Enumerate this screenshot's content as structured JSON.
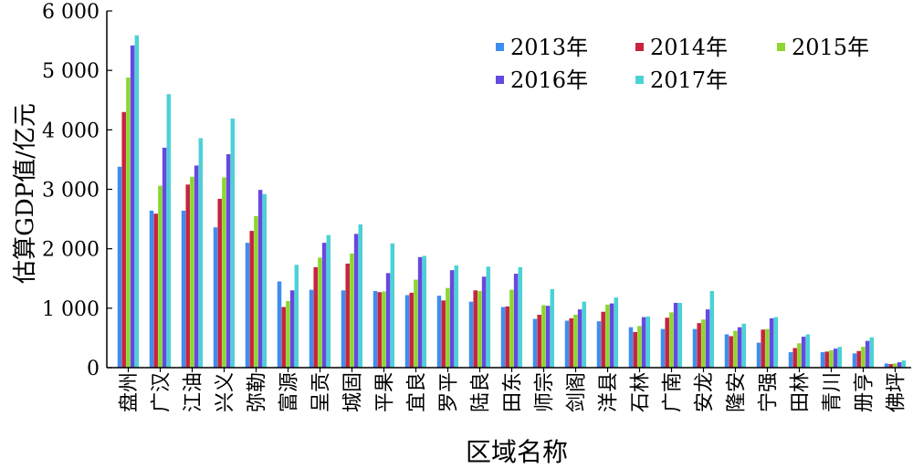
{
  "chart_data": {
    "type": "bar",
    "ylabel": "估算GDP值/亿元",
    "xlabel": "区域名称",
    "ylim": [
      0,
      6000
    ],
    "yticks": [
      0,
      1000,
      2000,
      3000,
      4000,
      5000,
      6000
    ],
    "ytick_labels": [
      "0",
      "1 000",
      "2 000",
      "3 000",
      "4 000",
      "5 000",
      "6 000"
    ],
    "grid": false,
    "legend_position": "top-right",
    "categories": [
      "盘州",
      "广汉",
      "江油",
      "兴义",
      "弥勒",
      "富源",
      "呈贡",
      "城固",
      "平果",
      "宜良",
      "罗平",
      "陆良",
      "田东",
      "师宗",
      "剑阁",
      "洋县",
      "石林",
      "广南",
      "安龙",
      "隆安",
      "宁强",
      "田林",
      "青川",
      "册亨",
      "佛坪"
    ],
    "series": [
      {
        "name": "2013年",
        "color": "#3d8ef0",
        "values": [
          3380,
          2640,
          2640,
          2360,
          2100,
          1450,
          1310,
          1300,
          1290,
          1220,
          1210,
          1110,
          1020,
          820,
          790,
          780,
          680,
          650,
          650,
          560,
          420,
          260,
          260,
          240,
          70
        ]
      },
      {
        "name": "2014年",
        "color": "#c8233f",
        "values": [
          4300,
          2590,
          3080,
          2840,
          2300,
          1020,
          1690,
          1750,
          1270,
          1260,
          1130,
          1300,
          1030,
          890,
          830,
          940,
          600,
          840,
          750,
          530,
          640,
          330,
          270,
          280,
          60
        ]
      },
      {
        "name": "2015年",
        "color": "#8ed62f",
        "values": [
          4880,
          3060,
          3210,
          3200,
          2550,
          1120,
          1850,
          1920,
          1280,
          1480,
          1340,
          1290,
          1310,
          1050,
          890,
          1060,
          700,
          930,
          810,
          620,
          650,
          410,
          290,
          350,
          70
        ]
      },
      {
        "name": "2016年",
        "color": "#6549e0",
        "values": [
          5420,
          3700,
          3400,
          3590,
          2990,
          1300,
          2100,
          2250,
          1590,
          1860,
          1640,
          1530,
          1580,
          1040,
          980,
          1080,
          850,
          1090,
          980,
          680,
          830,
          520,
          320,
          450,
          90
        ]
      },
      {
        "name": "2017年",
        "color": "#4cd2d6",
        "values": [
          5590,
          4600,
          3860,
          4190,
          2920,
          1730,
          2230,
          2410,
          2090,
          1880,
          1720,
          1700,
          1690,
          1320,
          1110,
          1180,
          860,
          1090,
          1290,
          740,
          850,
          560,
          350,
          510,
          120
        ]
      }
    ]
  }
}
